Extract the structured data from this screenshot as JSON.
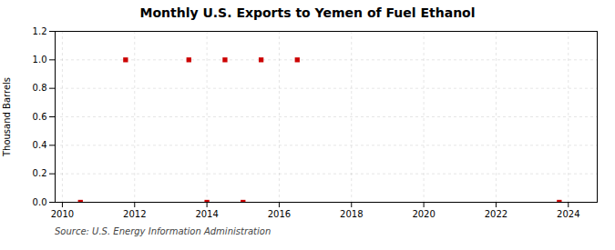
{
  "chart_data": {
    "type": "scatter",
    "title": "Monthly U.S. Exports to Yemen of Fuel Ethanol",
    "ylabel": "Thousand Barrels",
    "source": "Source: U.S. Energy Information Administration",
    "x": [
      2010.5,
      2011.75,
      2013.5,
      2014.0,
      2014.5,
      2015.0,
      2015.5,
      2016.5,
      2023.75
    ],
    "values": [
      0.0,
      1.0,
      1.0,
      0.0,
      1.0,
      0.0,
      1.0,
      1.0,
      0.0
    ],
    "color": "#cc0000",
    "marker": "square",
    "xlim": [
      2009.8,
      2024.8
    ],
    "ylim": [
      0.0,
      1.2
    ],
    "xticks": [
      2010,
      2012,
      2014,
      2016,
      2018,
      2020,
      2022,
      2024
    ],
    "yticks": [
      {
        "value": 0.0,
        "label": "0.0"
      },
      {
        "value": 0.2,
        "label": "0.2"
      },
      {
        "value": 0.4,
        "label": "0.4"
      },
      {
        "value": 0.6,
        "label": "0.6"
      },
      {
        "value": 0.8,
        "label": "0.8"
      },
      {
        "value": 1.0,
        "label": "1.0"
      },
      {
        "value": 1.2,
        "label": "1.2"
      }
    ],
    "grid": true
  }
}
